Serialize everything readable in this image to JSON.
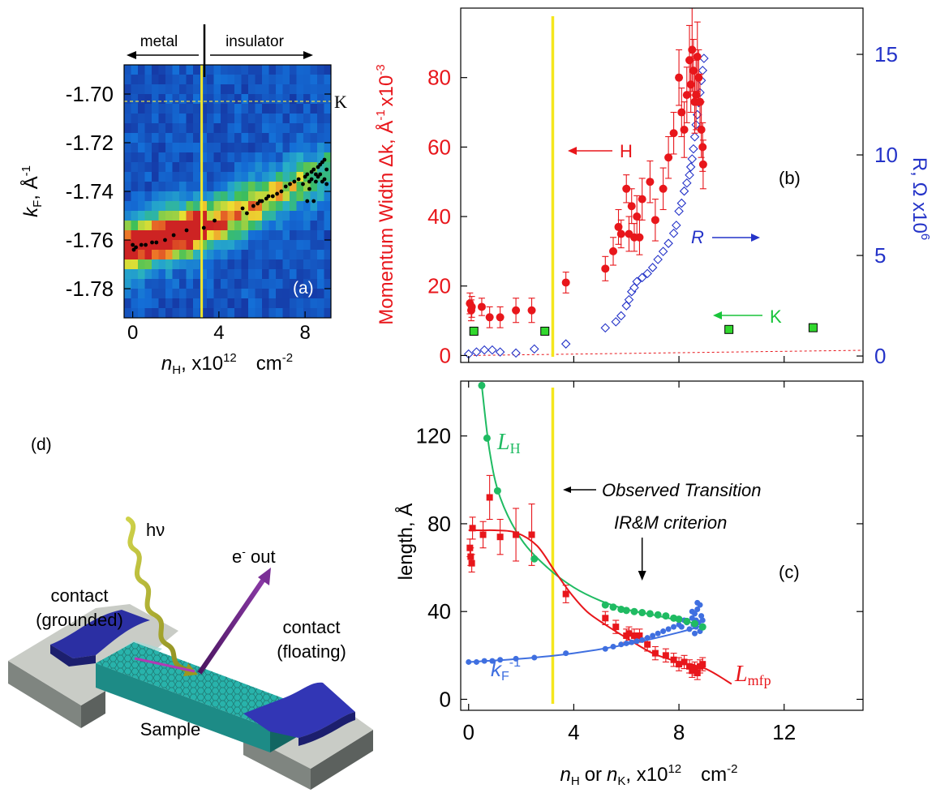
{
  "chart_data": [
    {
      "id": "a",
      "type": "heatmap",
      "panel_label": "(a)",
      "xlabel_main": "n",
      "xlabel_sub": "H",
      "xlabel_tail": ", x10",
      "xlabel_exp": "12",
      "xlabel_unit": "cm",
      "xlabel_unit_exp": "-2",
      "ylabel_main": "k",
      "ylabel_sub": "F",
      "ylabel_tail": ", Å",
      "ylabel_exp": "-1",
      "xlim": [
        -0.4,
        9.2
      ],
      "ylim": [
        -1.792,
        -1.688
      ],
      "xticks": [
        0,
        4,
        8
      ],
      "yticks": [
        -1.7,
        -1.72,
        -1.74,
        -1.76,
        -1.78
      ],
      "ytick_labels": [
        "-1.70",
        "-1.72",
        "-1.74",
        "-1.76",
        "-1.78"
      ],
      "metal_label": "metal",
      "insulator_label": "insulator",
      "k_line_y": -1.703,
      "k_label": "K",
      "transition_x": 3.2,
      "colors": {
        "transition": "#f0e52a",
        "kline": "#e8e34a",
        "points": "#000000"
      },
      "points": {
        "x": [
          0.0,
          0.05,
          0.15,
          0.4,
          0.6,
          0.9,
          1.1,
          1.5,
          1.9,
          2.5,
          3.3,
          3.8,
          5.1,
          5.3,
          5.6,
          5.8,
          5.9,
          6.0,
          6.2,
          6.3,
          6.5,
          6.7,
          6.9,
          7.1,
          7.3,
          7.5,
          7.7,
          7.9,
          8.0,
          8.1,
          8.2,
          8.2,
          8.3,
          8.3,
          8.4,
          8.5,
          8.5,
          8.6,
          8.6,
          8.7,
          8.7,
          8.8,
          8.8,
          8.9,
          8.9,
          9.0,
          9.0,
          8.1,
          8.4
        ],
        "y": [
          -1.762,
          -1.764,
          -1.763,
          -1.762,
          -1.762,
          -1.761,
          -1.761,
          -1.76,
          -1.758,
          -1.756,
          -1.755,
          -1.752,
          -1.747,
          -1.749,
          -1.746,
          -1.745,
          -1.744,
          -1.744,
          -1.743,
          -1.742,
          -1.742,
          -1.741,
          -1.74,
          -1.738,
          -1.737,
          -1.736,
          -1.735,
          -1.737,
          -1.734,
          -1.733,
          -1.736,
          -1.739,
          -1.732,
          -1.735,
          -1.731,
          -1.733,
          -1.736,
          -1.73,
          -1.734,
          -1.729,
          -1.733,
          -1.728,
          -1.736,
          -1.727,
          -1.735,
          -1.731,
          -1.737,
          -1.744,
          -1.744
        ]
      }
    },
    {
      "id": "b",
      "type": "scatter",
      "panel_label": "(b)",
      "ylabel": "Momentum Width Δk, Å",
      "ylabel_exp": "-1",
      "ylabel_tail": "x10",
      "ylabel_tail_exp": "-3",
      "y2label": "R, Ω  x10",
      "y2label_exp": "6",
      "xlim": [
        -0.3,
        15
      ],
      "ylim": [
        -2,
        100
      ],
      "y2lim": [
        -0.32,
        17.3
      ],
      "yticks": [
        0,
        20,
        40,
        60,
        80
      ],
      "y2ticks": [
        0,
        5,
        10,
        15
      ],
      "transition_x": 3.2,
      "annotation_H": "H",
      "annotation_R": "R",
      "annotation_K": "K",
      "colors": {
        "H": "#e8161b",
        "R": "#2433c8",
        "K": "#19c43a",
        "K_fill": "#32d82e",
        "transition": "#f5e61c"
      },
      "series": [
        {
          "name": "H",
          "axis": "left",
          "x": [
            0.05,
            0.1,
            0.12,
            0.5,
            0.8,
            1.2,
            1.8,
            2.4,
            3.7,
            5.2,
            5.5,
            5.7,
            5.8,
            6.0,
            6.1,
            6.2,
            6.3,
            6.4,
            6.5,
            6.6,
            6.9,
            7.1,
            7.4,
            7.6,
            7.8,
            8.0,
            8.1,
            8.2,
            8.3,
            8.4,
            8.45,
            8.5,
            8.55,
            8.6,
            8.65,
            8.7,
            8.75,
            8.8,
            8.85,
            8.9,
            8.92
          ],
          "y": [
            15,
            13,
            14,
            14,
            11,
            11,
            13,
            13,
            21,
            25,
            30,
            37,
            35,
            48,
            35,
            43,
            34,
            40,
            34,
            45,
            50,
            39,
            48,
            57,
            64,
            80,
            70,
            65,
            75,
            85,
            78,
            88,
            82,
            73,
            75,
            86,
            80,
            73,
            65,
            60,
            55
          ],
          "err": [
            3,
            3,
            3,
            2.5,
            3,
            3,
            3.5,
            3.5,
            3,
            3.5,
            4,
            5,
            4,
            4,
            5,
            5,
            4,
            6,
            5,
            6,
            6,
            6,
            6,
            6,
            6,
            8,
            7,
            8,
            8,
            10,
            8,
            12,
            9,
            9,
            10,
            10,
            8,
            8,
            8,
            7,
            7
          ]
        },
        {
          "name": "R",
          "axis": "right",
          "x": [
            0.0,
            0.3,
            0.6,
            0.9,
            1.2,
            1.8,
            2.5,
            3.7,
            5.2,
            5.6,
            5.8,
            6.0,
            6.1,
            6.2,
            6.3,
            6.4,
            6.6,
            6.8,
            7.0,
            7.2,
            7.4,
            7.6,
            7.8,
            7.9,
            8.0,
            8.1,
            8.2,
            8.3,
            8.4,
            8.45,
            8.5,
            8.55,
            8.6,
            8.65,
            8.7,
            8.75,
            8.8,
            8.85,
            8.9,
            8.95
          ],
          "y": [
            0.1,
            0.2,
            0.3,
            0.3,
            0.2,
            0.15,
            0.35,
            0.6,
            1.4,
            1.7,
            2.0,
            2.5,
            2.8,
            3.2,
            3.4,
            3.7,
            3.9,
            4.1,
            4.4,
            4.8,
            5.2,
            5.6,
            6.1,
            6.5,
            7.2,
            7.6,
            8.2,
            8.6,
            9.0,
            9.4,
            9.8,
            10.3,
            10.9,
            11.5,
            12.0,
            12.6,
            13.1,
            13.7,
            14.2,
            14.8
          ]
        },
        {
          "name": "K",
          "axis": "left",
          "x": [
            0.2,
            2.9,
            9.9,
            13.1
          ],
          "y": [
            7,
            7,
            7.5,
            8
          ]
        }
      ],
      "dashed_baseline": {
        "x": [
          0,
          15
        ],
        "y": [
          0,
          1.5
        ]
      }
    },
    {
      "id": "c",
      "type": "line",
      "panel_label": "(c)",
      "xlabel_n1": "n",
      "xlabel_s1": "H",
      "xlabel_mid": "or",
      "xlabel_n2": "n",
      "xlabel_s2": "K",
      "xlabel_tail": ", x10",
      "xlabel_exp": "12",
      "xlabel_unit": "cm",
      "xlabel_unit_exp": "-2",
      "ylabel": "length, Å",
      "xlim": [
        -0.3,
        15
      ],
      "ylim": [
        -5,
        145
      ],
      "xticks": [
        0,
        4,
        8,
        12
      ],
      "yticks": [
        0,
        40,
        80,
        120
      ],
      "transition_x": 3.2,
      "annotation_transition": "Observed Transition",
      "annotation_irm": "IR&M criterion",
      "irm_x": 6.6,
      "label_LH": "L",
      "label_LH_sub": "H",
      "label_Lmfp": "L",
      "label_Lmfp_sub": "mfp",
      "label_kF": "k",
      "label_kF_sub": "F",
      "label_kF_exp": "-1",
      "colors": {
        "LH": "#1fbb62",
        "Lmfp": "#e8161b",
        "kF": "#3f6fe0",
        "transition": "#f5e61c"
      },
      "series": [
        {
          "name": "L_H",
          "x": [
            0.5,
            0.7,
            1.1,
            2.5,
            5.2,
            5.5,
            5.8,
            6.0,
            6.3,
            6.6,
            6.9,
            7.2,
            7.5,
            7.8,
            8.0,
            8.3,
            8.6,
            8.9
          ],
          "y": [
            143,
            119,
            95,
            64,
            43,
            42,
            41,
            40.5,
            40,
            39.5,
            39,
            38.5,
            38,
            37,
            36.5,
            35.5,
            34.5,
            33
          ]
        },
        {
          "name": "L_mfp",
          "x": [
            0.05,
            0.08,
            0.12,
            0.15,
            0.55,
            0.8,
            1.2,
            1.8,
            2.4,
            3.7,
            5.2,
            5.6,
            6.0,
            6.1,
            6.3,
            6.5,
            6.8,
            7.1,
            7.5,
            7.8,
            8.0,
            8.2,
            8.4,
            8.5,
            8.6,
            8.7,
            8.8,
            8.9
          ],
          "y": [
            69,
            65,
            62,
            78,
            75,
            92,
            74,
            75,
            75,
            48,
            37,
            33,
            29,
            30,
            29,
            29,
            25,
            21,
            20,
            18,
            16,
            17,
            15,
            13,
            14,
            12,
            15,
            16
          ],
          "err": [
            4,
            4,
            4,
            5,
            6,
            10,
            8,
            12,
            14,
            4,
            3,
            3,
            3,
            3,
            3,
            3,
            3,
            3,
            3,
            3,
            3,
            3,
            3,
            3,
            3,
            3,
            3,
            3
          ]
        },
        {
          "name": "kF_inv",
          "x": [
            0,
            0.3,
            0.6,
            0.9,
            1.2,
            1.8,
            2.5,
            3.7,
            5.2,
            5.5,
            5.8,
            6.0,
            6.2,
            6.4,
            6.6,
            6.8,
            7.0,
            7.2,
            7.4,
            7.6,
            7.8,
            8.0,
            8.1,
            8.2,
            8.3,
            8.4,
            8.5,
            8.55,
            8.6,
            8.65,
            8.7,
            8.75,
            8.8,
            8.85,
            8.9,
            8.6,
            8.7,
            8.8,
            8.5,
            8.65
          ],
          "y": [
            17,
            17,
            17.5,
            17.5,
            18,
            18.5,
            19,
            21,
            23,
            24,
            25,
            25.5,
            26,
            26.5,
            27,
            28,
            29,
            30,
            31,
            32,
            33,
            34,
            33,
            36,
            35,
            32,
            37,
            34,
            39,
            36,
            41,
            35,
            43,
            38,
            36,
            30,
            44,
            31,
            40,
            33
          ]
        }
      ],
      "fit_LH": {
        "x": [
          0.5,
          0.8,
          1.2,
          2.0,
          3.0,
          4.0,
          5.0,
          6.0,
          7.0,
          8.0,
          8.9
        ],
        "y": [
          143,
          113,
          92,
          73,
          60,
          51,
          45,
          41,
          38.5,
          36,
          34
        ]
      },
      "fit_Lmfp": {
        "x": [
          0.0,
          0.5,
          1.0,
          1.8,
          2.6,
          3.3,
          3.9,
          4.5,
          5.2,
          6.0,
          7.0,
          8.0,
          9.0,
          10.0
        ],
        "y": [
          77,
          77,
          77,
          76,
          70,
          58,
          48,
          40,
          34,
          28,
          21,
          17,
          14,
          7
        ]
      },
      "fit_kF": {
        "x": [
          0,
          2,
          4,
          6,
          8,
          9
        ],
        "y": [
          17,
          18.5,
          21,
          25,
          30.5,
          34
        ]
      }
    }
  ],
  "diagram": {
    "panel_label": "(d)",
    "photon_label": "hν",
    "electron_label": "e",
    "electron_sup": "-",
    "electron_tail": " out",
    "contact_left_line1": "contact",
    "contact_left_line2": "(grounded)",
    "contact_right_line1": "contact",
    "contact_right_line2": "(floating)",
    "sample_label": "Sample"
  }
}
